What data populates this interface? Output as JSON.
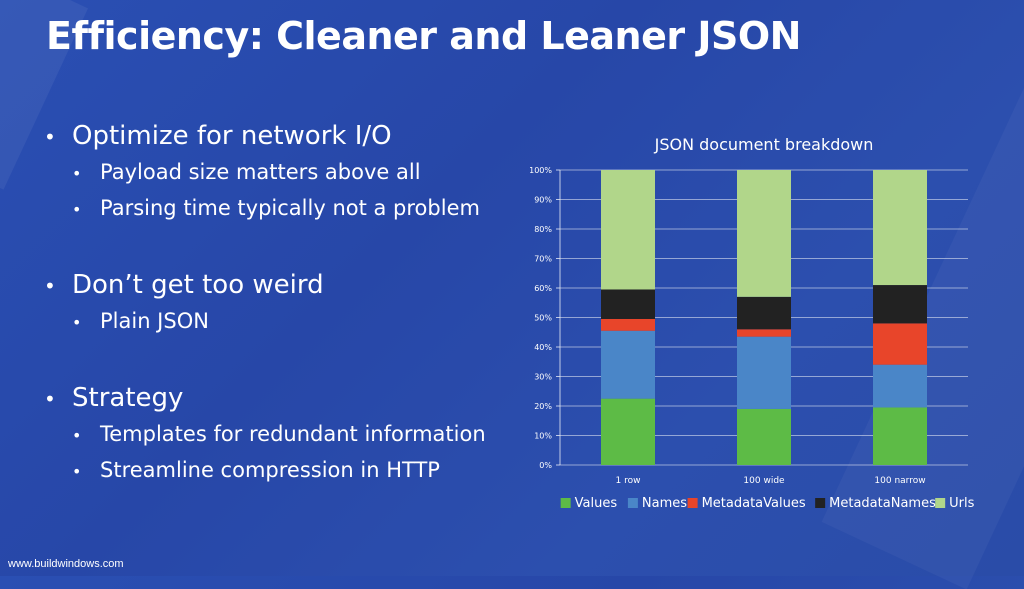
{
  "slide": {
    "title": "Efficiency: Cleaner and Leaner JSON",
    "footer": "www.buildwindows.com"
  },
  "bullets": [
    {
      "text": "Optimize for network I/O",
      "sub": [
        "Payload size matters above all",
        "Parsing time typically not a problem"
      ]
    },
    {
      "text": "Don’t get too weird",
      "sub": [
        "Plain JSON"
      ]
    },
    {
      "text": "Strategy",
      "sub": [
        "Templates for redundant information",
        "Streamline compression in HTTP"
      ]
    }
  ],
  "colors": {
    "Values": "#5dbb46",
    "Names": "#4a86c8",
    "MetadataValues": "#e8452a",
    "MetadataNames": "#222222",
    "Urls": "#b1d68a"
  },
  "chart_data": {
    "type": "bar",
    "stacked": true,
    "title": "JSON document breakdown",
    "categories": [
      "1 row",
      "100 wide",
      "100 narrow"
    ],
    "series": [
      {
        "name": "Values",
        "values": [
          22.5,
          19,
          19.5
        ]
      },
      {
        "name": "Names",
        "values": [
          23,
          24.5,
          14.5
        ]
      },
      {
        "name": "MetadataValues",
        "values": [
          4,
          2.5,
          14
        ]
      },
      {
        "name": "MetadataNames",
        "values": [
          10,
          11,
          13
        ]
      },
      {
        "name": "Urls",
        "values": [
          40.5,
          43,
          39
        ]
      }
    ],
    "ylim": [
      0,
      100
    ],
    "yticks": [
      "0%",
      "10%",
      "20%",
      "30%",
      "40%",
      "50%",
      "60%",
      "70%",
      "80%",
      "90%",
      "100%"
    ],
    "grid": true,
    "legend": "bottom"
  }
}
